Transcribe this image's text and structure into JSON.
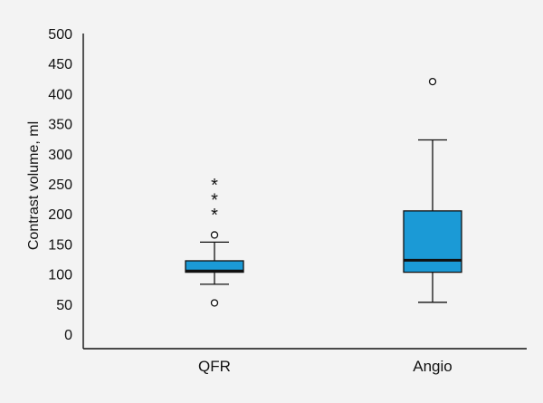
{
  "chart_data": {
    "type": "boxplot",
    "ylabel": "Contrast volume, ml",
    "xlabel": "",
    "ylim": [
      0,
      500
    ],
    "yticks": [
      0,
      50,
      100,
      150,
      200,
      250,
      300,
      350,
      400,
      450,
      500
    ],
    "ytick_labels": [
      "0",
      "50",
      "100",
      "150",
      "200",
      "250",
      "300",
      "350",
      "400",
      "450",
      "500"
    ],
    "categories": [
      "QFR",
      "Angio"
    ],
    "box_color": "#1b9ad6",
    "grid": false,
    "boxes": [
      {
        "category": "QFR",
        "whisker_low": 83,
        "q1": 103,
        "median": 105,
        "q3": 122,
        "whisker_high": 153,
        "outliers": [
          52,
          165
        ],
        "extremes": [
          200,
          225,
          250
        ]
      },
      {
        "category": "Angio",
        "whisker_low": 53,
        "q1": 103,
        "median": 123,
        "q3": 205,
        "whisker_high": 323,
        "outliers": [
          420
        ],
        "extremes": []
      }
    ]
  }
}
